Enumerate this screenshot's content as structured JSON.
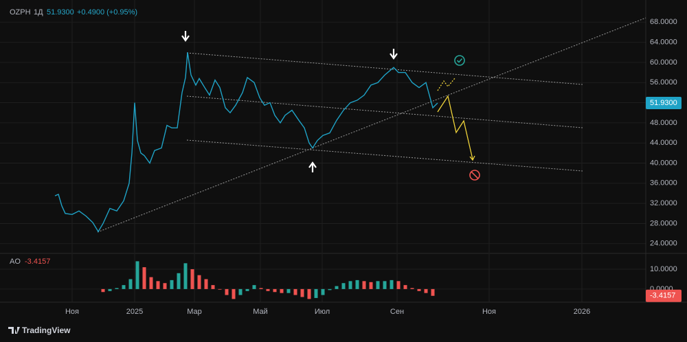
{
  "chart_data": [
    {
      "type": "line",
      "symbol": "OZPH",
      "interval": "1Д",
      "last_label": "51.9300",
      "change": "+0.4900 (+0.95%)",
      "color": "#1fa3c7",
      "grid": true,
      "x": [
        8.0,
        8.5,
        9.0,
        9.5,
        10.5,
        11.5,
        12.5,
        13.5,
        14.3,
        15.0,
        16.0,
        17.0,
        18.0,
        18.8,
        19.2,
        19.6,
        20.0,
        20.5,
        21.0,
        21.8,
        22.5,
        23.5,
        24.3,
        25.0,
        25.8,
        26.5,
        27.0,
        27.3,
        27.8,
        28.5,
        29.0,
        29.8,
        30.5,
        31.3,
        32.0,
        32.8,
        33.5,
        34.3,
        35.3,
        36.0,
        37.0,
        37.8,
        38.5,
        39.3,
        40.0,
        40.8,
        41.5,
        42.5,
        43.5,
        44.3,
        45.0,
        45.5,
        46.2,
        47.0,
        48.0,
        49.0,
        50.0,
        51.0,
        52.0,
        53.0,
        54.0,
        55.0,
        56.0,
        57.3,
        58.0,
        59.0,
        60.0,
        61.0,
        62.0,
        62.5,
        63.0,
        63.7
      ],
      "values": [
        33.5,
        33.8,
        31.5,
        30.0,
        29.8,
        30.5,
        29.5,
        28.2,
        26.4,
        28.0,
        31.0,
        30.5,
        32.5,
        36.0,
        42.0,
        52.0,
        44.5,
        42.0,
        41.5,
        40.0,
        42.5,
        43.0,
        47.5,
        47.0,
        47.0,
        54.0,
        57.0,
        62.0,
        57.5,
        55.5,
        56.8,
        55.0,
        53.5,
        56.5,
        55.0,
        51.0,
        50.0,
        51.5,
        54.0,
        57.0,
        56.0,
        53.0,
        51.5,
        52.0,
        49.5,
        48.0,
        49.5,
        50.5,
        48.5,
        47.0,
        44.0,
        43.0,
        44.5,
        45.5,
        46.0,
        48.5,
        50.5,
        52.0,
        52.5,
        53.5,
        55.5,
        56.0,
        57.5,
        59.0,
        58.0,
        58.0,
        56.0,
        55.0,
        56.0,
        53.5,
        51.0,
        51.93
      ],
      "xlim": [
        0,
        94
      ],
      "xticks": [
        {
          "value": 10.5,
          "label": "Ноя"
        },
        {
          "value": 19.6,
          "label": "2025"
        },
        {
          "value": 28.3,
          "label": "Мар"
        },
        {
          "value": 37.9,
          "label": "Май"
        },
        {
          "value": 46.9,
          "label": "Июл"
        },
        {
          "value": 57.8,
          "label": "Сен"
        },
        {
          "value": 71.2,
          "label": "Ноя"
        },
        {
          "value": 84.7,
          "label": "2026"
        }
      ],
      "ylim": [
        22.2,
        72.4
      ],
      "yticks": [
        {
          "value": 24,
          "label": "24.0000"
        },
        {
          "value": 28,
          "label": "28.0000"
        },
        {
          "value": 32,
          "label": "32.0000"
        },
        {
          "value": 36,
          "label": "36.0000"
        },
        {
          "value": 40,
          "label": "40.0000"
        },
        {
          "value": 44,
          "label": "44.0000"
        },
        {
          "value": 48,
          "label": "48.0000"
        },
        {
          "value": 52,
          "label": "52.0000"
        },
        {
          "value": 56,
          "label": "56.0000"
        },
        {
          "value": 60,
          "label": "60.0000"
        },
        {
          "value": 64,
          "label": "64.0000"
        },
        {
          "value": 68,
          "label": "68.0000"
        }
      ]
    },
    {
      "type": "bar",
      "name": "AO",
      "last_label": "-3.4157",
      "colors": [
        "#26a69a",
        "#ef5350"
      ],
      "x": [
        15,
        16,
        17,
        18,
        19,
        20,
        21,
        22,
        23,
        24,
        25,
        26,
        27,
        28,
        29,
        30,
        31,
        32,
        33,
        34,
        35,
        36,
        37,
        38,
        39,
        40,
        41,
        42,
        43,
        44,
        45,
        46,
        47,
        48,
        49,
        50,
        51,
        52,
        53,
        54,
        55,
        56,
        57,
        58,
        59,
        60,
        61,
        62,
        63
      ],
      "values": [
        -1.5,
        -1.0,
        0.5,
        2,
        5,
        14,
        11,
        6,
        4,
        3,
        4.5,
        8,
        13,
        10,
        7,
        5,
        2,
        0,
        -3,
        -5,
        -3,
        -1,
        2,
        0.5,
        -1,
        -1.5,
        -2,
        -2,
        -3,
        -4,
        -5,
        -4.5,
        -3,
        -0.5,
        1.5,
        3,
        4,
        4.5,
        4,
        3.5,
        4,
        4,
        4.5,
        4,
        2,
        0.5,
        -1,
        -2,
        -3.4157
      ],
      "ylim": [
        -6.6,
        17.6
      ],
      "yticks": [
        {
          "value": 10,
          "label": "10.0000"
        },
        {
          "value": 0,
          "label": "0.0000"
        }
      ]
    }
  ],
  "footer": "TradingView"
}
